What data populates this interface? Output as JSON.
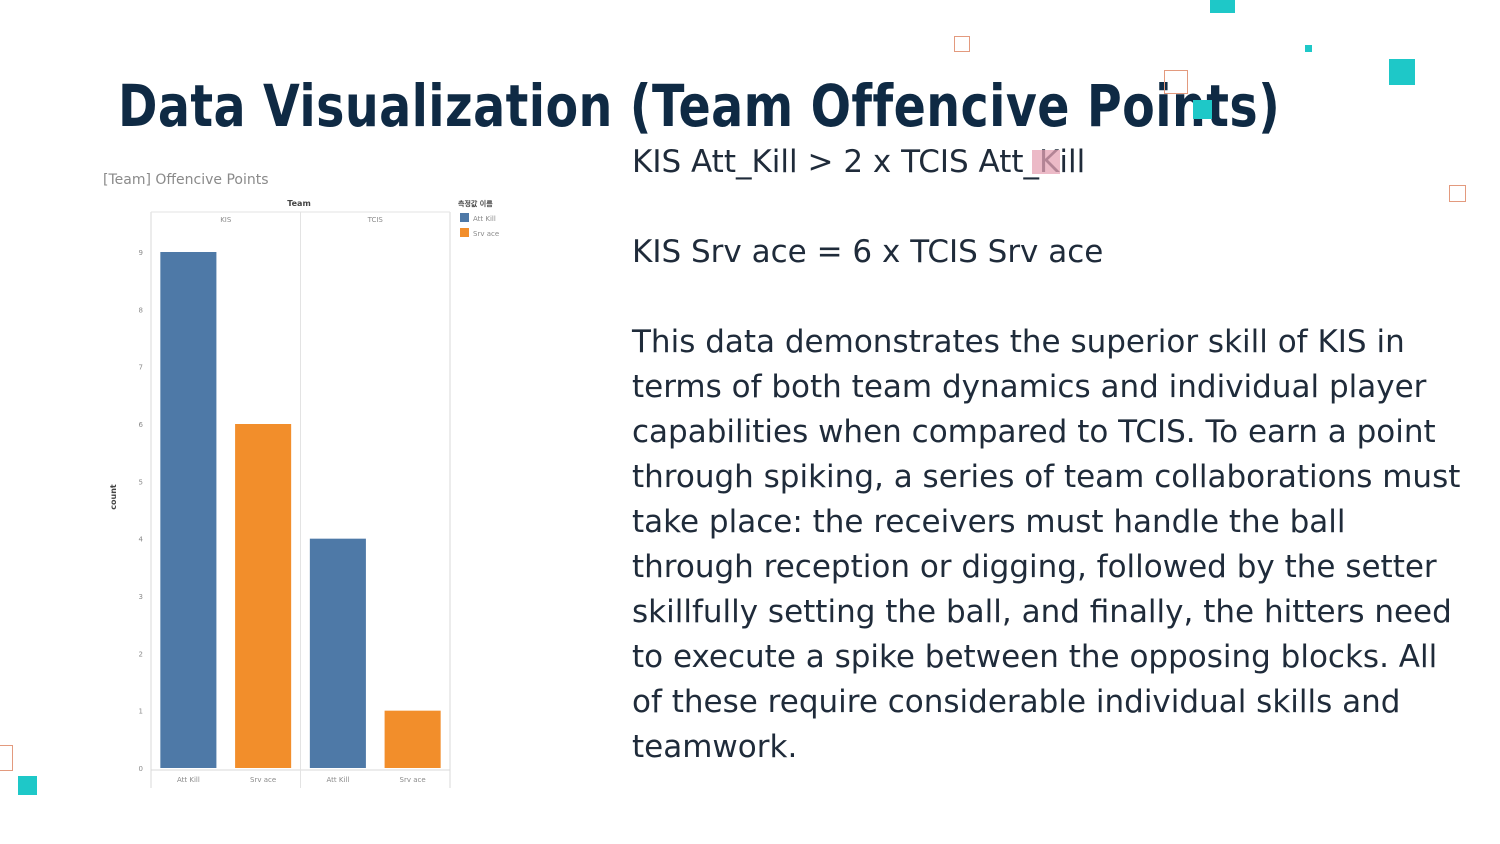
{
  "slide": {
    "title": "Data Visualization (Team Offencive Points)",
    "paragraphs": [
      "KIS Att_Kill > 2 x TCIS Att_Kill",
      "KIS Srv ace = 6 x TCIS Srv ace",
      "This data demonstrates the superior skill of KIS in terms of both team dynamics and individual player capabilities when compared to TCIS. To earn a point through spiking, a series of team collaborations must take place: the receivers must handle the ball through reception or digging, followed by the setter skillfully setting the ball, and finally, the hitters need to execute a spike between the opposing blocks. All of these require considerable individual skills and teamwork."
    ],
    "colors": {
      "title": "#0f2a44",
      "accent_teal": "#1ec8c8",
      "accent_coral": "#e39a7e",
      "accent_pink": "#e6a3b4"
    }
  },
  "chart_data": {
    "type": "bar",
    "title": "[Team] Offencive Points",
    "column_header": "Team",
    "ylabel": "count",
    "ylim": [
      0,
      9
    ],
    "yticks": [
      0,
      1,
      2,
      3,
      4,
      5,
      6,
      7,
      8,
      9
    ],
    "groups": [
      {
        "name": "KIS",
        "categories": [
          "Att Kill",
          "Srv ace"
        ],
        "values": [
          9,
          6
        ]
      },
      {
        "name": "TCIS",
        "categories": [
          "Att Kill",
          "Srv ace"
        ],
        "values": [
          4,
          1
        ]
      }
    ],
    "legend": {
      "title": "측정값 이름",
      "position": "top-right",
      "items": [
        {
          "name": "Att Kill",
          "color": "#4e79a7"
        },
        {
          "name": "Srv ace",
          "color": "#f28e2b"
        }
      ]
    },
    "grid": false
  }
}
